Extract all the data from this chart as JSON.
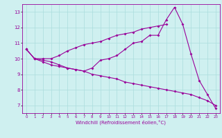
{
  "xlabel": "Windchill (Refroidissement éolien,°C)",
  "background_color": "#cff0f0",
  "line_color": "#990099",
  "grid_color": "#aadddd",
  "xlim": [
    -0.5,
    23.5
  ],
  "ylim": [
    6.5,
    13.5
  ],
  "yticks": [
    7,
    8,
    9,
    10,
    11,
    12,
    13
  ],
  "xticks": [
    0,
    1,
    2,
    3,
    4,
    5,
    6,
    7,
    8,
    9,
    10,
    11,
    12,
    13,
    14,
    15,
    16,
    17,
    18,
    19,
    20,
    21,
    22,
    23
  ],
  "hours": [
    0,
    1,
    2,
    3,
    4,
    5,
    6,
    7,
    8,
    9,
    10,
    11,
    12,
    13,
    14,
    15,
    16,
    17,
    18,
    19,
    20,
    21,
    22,
    23
  ],
  "line_top": [
    10.6,
    10.0,
    10.0,
    10.0,
    10.2,
    10.5,
    10.7,
    10.9,
    11.0,
    11.1,
    11.3,
    11.5,
    11.6,
    11.7,
    11.9,
    12.0,
    12.1,
    12.2,
    null,
    null,
    null,
    null,
    null,
    null
  ],
  "line_mid": [
    10.6,
    10.0,
    9.8,
    9.6,
    9.5,
    9.4,
    9.3,
    9.2,
    9.4,
    9.9,
    10.0,
    10.2,
    10.6,
    11.0,
    11.1,
    11.5,
    11.5,
    12.5,
    13.3,
    12.2,
    10.3,
    8.6,
    7.7,
    6.8
  ],
  "line_bot": [
    10.6,
    10.0,
    9.9,
    9.8,
    9.6,
    9.4,
    9.3,
    9.2,
    9.0,
    8.9,
    8.8,
    8.7,
    8.5,
    8.4,
    8.3,
    8.2,
    8.1,
    8.0,
    7.9,
    7.8,
    7.7,
    7.5,
    7.3,
    7.0
  ]
}
